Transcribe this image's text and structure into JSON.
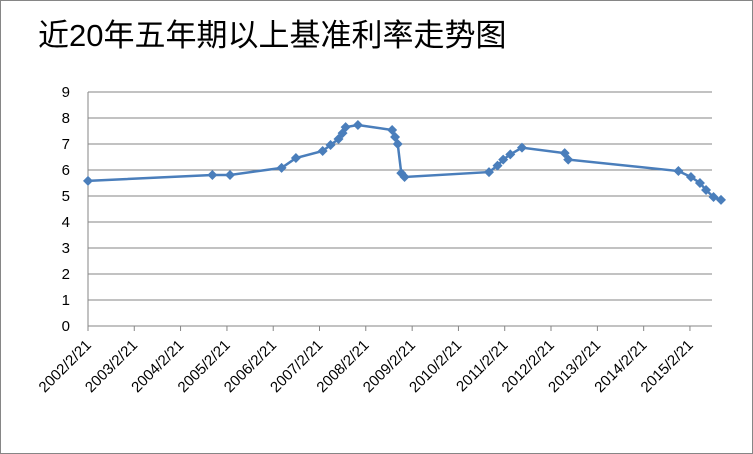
{
  "chart_data": {
    "type": "line",
    "title": "近20年五年期以上基准利率走势图",
    "x": [
      "2002/2/21",
      "2004/10/29",
      "2005/3/17",
      "2006/4/28",
      "2006/8/19",
      "2007/3/18",
      "2007/5/19",
      "2007/7/21",
      "2007/8/22",
      "2007/9/15",
      "2007/12/21",
      "2008/9/16",
      "2008/10/9",
      "2008/10/30",
      "2008/11/27",
      "2008/12/23",
      "2010/10/20",
      "2010/12/26",
      "2011/2/9",
      "2011/4/6",
      "2011/7/7",
      "2012/6/8",
      "2012/7/6",
      "2014/11/22",
      "2015/3/1",
      "2015/5/11",
      "2015/6/28",
      "2015/8/26",
      "2015/10/24"
    ],
    "values": [
      5.58,
      5.81,
      5.81,
      6.08,
      6.46,
      6.73,
      6.96,
      7.19,
      7.42,
      7.65,
      7.73,
      7.54,
      7.27,
      7.0,
      5.88,
      5.73,
      5.92,
      6.17,
      6.4,
      6.6,
      6.86,
      6.65,
      6.4,
      5.96,
      5.73,
      5.5,
      5.23,
      4.96,
      4.85
    ],
    "color": "#4a7ebb",
    "xlim": [
      "2002/2/21",
      "2015/10/24"
    ],
    "xticks": [
      "2002/2/21",
      "2003/2/21",
      "2004/2/21",
      "2005/2/21",
      "2006/2/21",
      "2007/2/21",
      "2008/2/21",
      "2009/2/21",
      "2010/2/21",
      "2011/2/21",
      "2012/2/21",
      "2013/2/21",
      "2014/2/21",
      "2015/2/21"
    ],
    "ylim": [
      0,
      9
    ],
    "yticks": [
      0,
      1,
      2,
      3,
      4,
      5,
      6,
      7,
      8,
      9
    ],
    "grid": true
  }
}
